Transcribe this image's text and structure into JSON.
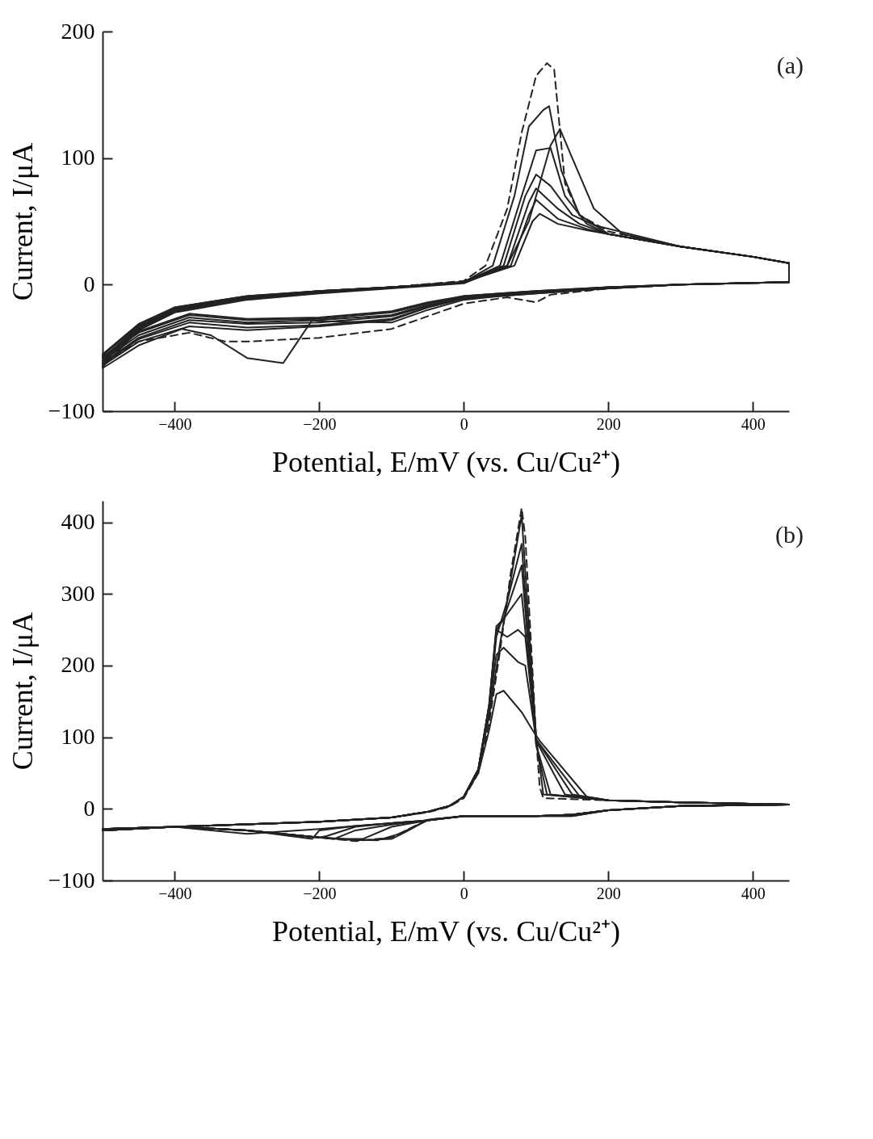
{
  "chart_data": [
    {
      "type": "line",
      "xlabel": "Potential, E/mV (vs. Cu/Cu²⁺)",
      "ylabel": "Current, I/μA",
      "annotations": [
        "(a)"
      ],
      "xlim": [
        -500,
        450
      ],
      "ylim": [
        -100,
        200
      ],
      "xticks": [
        -400,
        -200,
        0,
        200,
        400
      ],
      "yticks": [
        -100,
        0,
        100,
        200
      ],
      "series": [
        {
          "color": "#222222",
          "line_style": "dashed",
          "x": [
            -500,
            -450,
            -400,
            -300,
            -200,
            -100,
            0,
            30,
            60,
            80,
            100,
            115,
            125,
            140,
            160,
            200,
            300,
            400,
            450,
            450,
            300,
            200,
            120,
            100,
            60,
            0,
            -100,
            -200,
            -300,
            -330,
            -380,
            -450,
            -500
          ],
          "values": [
            -60,
            -33,
            -20,
            -11,
            -6,
            -2,
            3,
            15,
            60,
            120,
            165,
            175,
            170,
            80,
            55,
            42,
            30,
            22,
            17,
            2,
            0,
            -3,
            -8,
            -14,
            -10,
            -15,
            -35,
            -42,
            -45,
            -45,
            -38,
            -45,
            -62
          ]
        },
        {
          "color": "#222222",
          "line_style": "solid",
          "x": [
            -500,
            -450,
            -400,
            -300,
            -200,
            -100,
            0,
            40,
            70,
            90,
            110,
            118,
            135,
            160,
            200,
            300,
            400,
            450,
            450,
            300,
            200,
            100,
            50,
            0,
            -50,
            -100,
            -200,
            -300,
            -380,
            -450,
            -500
          ],
          "values": [
            -62,
            -35,
            -21,
            -11,
            -6,
            -2,
            2,
            15,
            70,
            125,
            138,
            141,
            90,
            55,
            40,
            30,
            22,
            17,
            2,
            0,
            -3,
            -7,
            -9,
            -11,
            -18,
            -28,
            -33,
            -36,
            -33,
            -45,
            -64
          ]
        },
        {
          "color": "#222222",
          "line_style": "solid",
          "x": [
            -500,
            -450,
            -400,
            -300,
            -200,
            -100,
            0,
            60,
            90,
            120,
            133,
            150,
            180,
            220,
            300,
            400,
            450,
            450,
            300,
            200,
            100,
            50,
            0,
            -50,
            -100,
            -200,
            -210,
            -230,
            -250,
            -300,
            -350,
            -390,
            -450,
            -500
          ],
          "values": [
            -65,
            -36,
            -22,
            -12,
            -7,
            -3,
            1,
            15,
            50,
            110,
            123,
            100,
            60,
            40,
            30,
            22,
            17,
            2,
            0,
            -3,
            -7,
            -9,
            -12,
            -20,
            -30,
            -29,
            -28,
            -45,
            -62,
            -58,
            -40,
            -35,
            -48,
            -66
          ]
        },
        {
          "color": "#222222",
          "line_style": "solid",
          "x": [
            -500,
            -450,
            -400,
            -300,
            -200,
            -100,
            0,
            50,
            80,
            100,
            120,
            140,
            170,
            200,
            300,
            400,
            450,
            450,
            300,
            200,
            100,
            50,
            0,
            -50,
            -100,
            -200,
            -300,
            -380,
            -450,
            -500
          ],
          "values": [
            -62,
            -35,
            -21,
            -11,
            -6,
            -2,
            2,
            15,
            70,
            106,
            108,
            70,
            48,
            40,
            30,
            22,
            17,
            2,
            0,
            -3,
            -6,
            -9,
            -11,
            -18,
            -27,
            -32,
            -34,
            -30,
            -43,
            -63
          ]
        },
        {
          "color": "#222222",
          "line_style": "solid",
          "x": [
            -500,
            -450,
            -400,
            -300,
            -200,
            -100,
            0,
            55,
            85,
            100,
            120,
            150,
            180,
            300,
            400,
            450,
            450,
            300,
            200,
            100,
            50,
            0,
            -50,
            -100,
            -200,
            -300,
            -380,
            -450,
            -500
          ],
          "values": [
            -60,
            -34,
            -20,
            -10,
            -5,
            -2,
            2,
            15,
            70,
            87,
            78,
            55,
            47,
            30,
            22,
            17,
            2,
            0,
            -3,
            -6,
            -8,
            -10,
            -17,
            -25,
            -30,
            -31,
            -28,
            -42,
            -62
          ]
        },
        {
          "color": "#222222",
          "line_style": "solid",
          "x": [
            -500,
            -450,
            -400,
            -300,
            -200,
            -100,
            0,
            60,
            90,
            100,
            130,
            160,
            200,
            300,
            400,
            450,
            450,
            300,
            200,
            100,
            50,
            0,
            -50,
            -100,
            -200,
            -300,
            -380,
            -450,
            -500
          ],
          "values": [
            -58,
            -33,
            -19,
            -10,
            -5,
            -2,
            2,
            15,
            65,
            76,
            60,
            48,
            40,
            30,
            22,
            17,
            2,
            0,
            -2,
            -6,
            -8,
            -10,
            -16,
            -24,
            -28,
            -30,
            -26,
            -40,
            -60
          ]
        },
        {
          "color": "#222222",
          "line_style": "solid",
          "x": [
            -500,
            -450,
            -400,
            -300,
            -200,
            -100,
            0,
            65,
            90,
            100,
            130,
            170,
            200,
            300,
            400,
            450,
            450,
            300,
            200,
            100,
            50,
            0,
            -50,
            -100,
            -200,
            -300,
            -380,
            -450,
            -500
          ],
          "values": [
            -56,
            -32,
            -18,
            -9,
            -5,
            -2,
            2,
            15,
            55,
            67,
            52,
            44,
            40,
            30,
            22,
            17,
            2,
            0,
            -2,
            -5,
            -7,
            -9,
            -15,
            -22,
            -27,
            -28,
            -24,
            -38,
            -58
          ]
        },
        {
          "color": "#222222",
          "line_style": "solid",
          "x": [
            -500,
            -450,
            -400,
            -300,
            -200,
            -100,
            0,
            70,
            95,
            105,
            130,
            170,
            200,
            300,
            400,
            450,
            450,
            300,
            200,
            100,
            50,
            0,
            -50,
            -100,
            -200,
            -300,
            -380,
            -450,
            -500
          ],
          "values": [
            -55,
            -31,
            -18,
            -9,
            -5,
            -2,
            2,
            15,
            50,
            56,
            48,
            43,
            40,
            30,
            22,
            17,
            2,
            0,
            -2,
            -5,
            -7,
            -9,
            -14,
            -21,
            -26,
            -27,
            -23,
            -37,
            -57
          ]
        }
      ]
    },
    {
      "type": "line",
      "xlabel": "Potential, E/mV (vs. Cu/Cu²⁺)",
      "ylabel": "Current, I/μA",
      "annotations": [
        "(b)"
      ],
      "xlim": [
        -500,
        450
      ],
      "ylim": [
        -100,
        430
      ],
      "xticks": [
        -400,
        -200,
        0,
        200,
        400
      ],
      "yticks": [
        -100,
        0,
        100,
        200,
        300,
        400
      ],
      "series": [
        {
          "color": "#222222",
          "line_style": "dashed",
          "x": [
            -500,
            -400,
            -200,
            -100,
            -50,
            -20,
            0,
            20,
            35,
            50,
            65,
            80,
            85,
            100,
            105,
            110,
            200,
            300,
            450,
            450,
            300,
            200,
            150,
            100,
            0,
            -50,
            -80,
            -100,
            -150,
            -200,
            -300,
            -400,
            -500
          ],
          "values": [
            -28,
            -25,
            -18,
            -12,
            -5,
            3,
            15,
            50,
            120,
            220,
            330,
            420,
            380,
            100,
            30,
            15,
            12,
            9,
            6,
            6,
            4,
            -2,
            -8,
            -10,
            -10,
            -15,
            -30,
            -40,
            -45,
            -40,
            -30,
            -25,
            -30
          ]
        },
        {
          "color": "#222222",
          "line_style": "solid",
          "x": [
            -500,
            -400,
            -200,
            -100,
            -50,
            -20,
            0,
            20,
            35,
            50,
            65,
            80,
            100,
            110,
            200,
            300,
            450,
            450,
            300,
            200,
            150,
            100,
            0,
            -50,
            -80,
            -100,
            -150,
            -200,
            -300,
            -400,
            -500
          ],
          "values": [
            -28,
            -25,
            -18,
            -12,
            -4,
            4,
            17,
            55,
            130,
            230,
            320,
            410,
            100,
            20,
            12,
            9,
            6,
            6,
            4,
            -2,
            -8,
            -10,
            -10,
            -15,
            -32,
            -42,
            -44,
            -40,
            -30,
            -25,
            -30
          ]
        },
        {
          "color": "#222222",
          "line_style": "solid",
          "x": [
            -500,
            -400,
            -200,
            -100,
            -50,
            -20,
            0,
            20,
            35,
            45,
            60,
            80,
            100,
            115,
            200,
            300,
            450,
            450,
            300,
            200,
            150,
            100,
            0,
            -50,
            -90,
            -120,
            -150,
            -200,
            -300,
            -400,
            -500
          ],
          "values": [
            -28,
            -25,
            -18,
            -12,
            -4,
            4,
            17,
            55,
            140,
            240,
            290,
            370,
            90,
            20,
            12,
            9,
            6,
            6,
            4,
            -2,
            -10,
            -10,
            -10,
            -16,
            -35,
            -44,
            -43,
            -40,
            -30,
            -25,
            -30
          ]
        },
        {
          "color": "#222222",
          "line_style": "solid",
          "x": [
            -500,
            -400,
            -200,
            -100,
            -50,
            -20,
            0,
            20,
            35,
            45,
            55,
            80,
            100,
            120,
            200,
            300,
            450,
            450,
            300,
            200,
            150,
            100,
            0,
            -50,
            -100,
            -140,
            -170,
            -200,
            -300,
            -400,
            -500
          ],
          "values": [
            -28,
            -25,
            -18,
            -12,
            -4,
            4,
            17,
            55,
            145,
            250,
            265,
            340,
            90,
            20,
            12,
            9,
            6,
            6,
            4,
            -2,
            -8,
            -10,
            -10,
            -16,
            -25,
            -42,
            -42,
            -40,
            -30,
            -25,
            -30
          ]
        },
        {
          "color": "#222222",
          "line_style": "solid",
          "x": [
            -500,
            -400,
            -200,
            -100,
            -50,
            -20,
            0,
            20,
            35,
            45,
            55,
            80,
            100,
            140,
            200,
            300,
            450,
            450,
            300,
            200,
            150,
            100,
            0,
            -50,
            -100,
            -150,
            -180,
            -200,
            -300,
            -400,
            -500
          ],
          "values": [
            -28,
            -25,
            -18,
            -12,
            -4,
            4,
            17,
            55,
            145,
            255,
            265,
            300,
            95,
            20,
            12,
            9,
            6,
            6,
            4,
            -2,
            -10,
            -10,
            -10,
            -16,
            -22,
            -30,
            -42,
            -40,
            -30,
            -25,
            -30
          ]
        },
        {
          "color": "#222222",
          "line_style": "solid",
          "x": [
            -500,
            -400,
            -200,
            -100,
            -50,
            -20,
            0,
            20,
            35,
            45,
            60,
            75,
            85,
            100,
            150,
            200,
            300,
            450,
            450,
            300,
            200,
            150,
            100,
            0,
            -50,
            -100,
            -150,
            -190,
            -200,
            -300,
            -400,
            -500
          ],
          "values": [
            -28,
            -25,
            -18,
            -12,
            -4,
            4,
            17,
            55,
            145,
            250,
            240,
            250,
            240,
            97,
            20,
            12,
            9,
            6,
            6,
            4,
            -2,
            -8,
            -10,
            -10,
            -16,
            -20,
            -25,
            -38,
            -40,
            -30,
            -25,
            -30
          ]
        },
        {
          "color": "#222222",
          "line_style": "solid",
          "x": [
            -500,
            -400,
            -200,
            -100,
            -50,
            -20,
            0,
            20,
            35,
            45,
            55,
            75,
            85,
            100,
            160,
            200,
            300,
            450,
            450,
            300,
            200,
            150,
            100,
            0,
            -50,
            -100,
            -150,
            -200,
            -210,
            -300,
            -400,
            -500
          ],
          "values": [
            -28,
            -25,
            -18,
            -12,
            -4,
            4,
            17,
            55,
            140,
            215,
            225,
            205,
            200,
            97,
            18,
            12,
            9,
            6,
            6,
            4,
            -2,
            -8,
            -10,
            -10,
            -16,
            -20,
            -24,
            -30,
            -42,
            -30,
            -25,
            -30
          ]
        },
        {
          "color": "#222222",
          "line_style": "solid",
          "x": [
            -500,
            -400,
            -200,
            -100,
            -50,
            -20,
            0,
            20,
            35,
            45,
            55,
            80,
            95,
            105,
            170,
            200,
            300,
            450,
            450,
            300,
            200,
            150,
            100,
            0,
            -50,
            -100,
            -150,
            -200,
            -300,
            -400,
            -500
          ],
          "values": [
            -28,
            -25,
            -18,
            -12,
            -4,
            4,
            17,
            50,
            110,
            160,
            165,
            135,
            110,
            95,
            17,
            12,
            9,
            6,
            6,
            4,
            -2,
            -8,
            -10,
            -10,
            -16,
            -20,
            -24,
            -28,
            -35,
            -25,
            -30
          ]
        }
      ]
    }
  ]
}
